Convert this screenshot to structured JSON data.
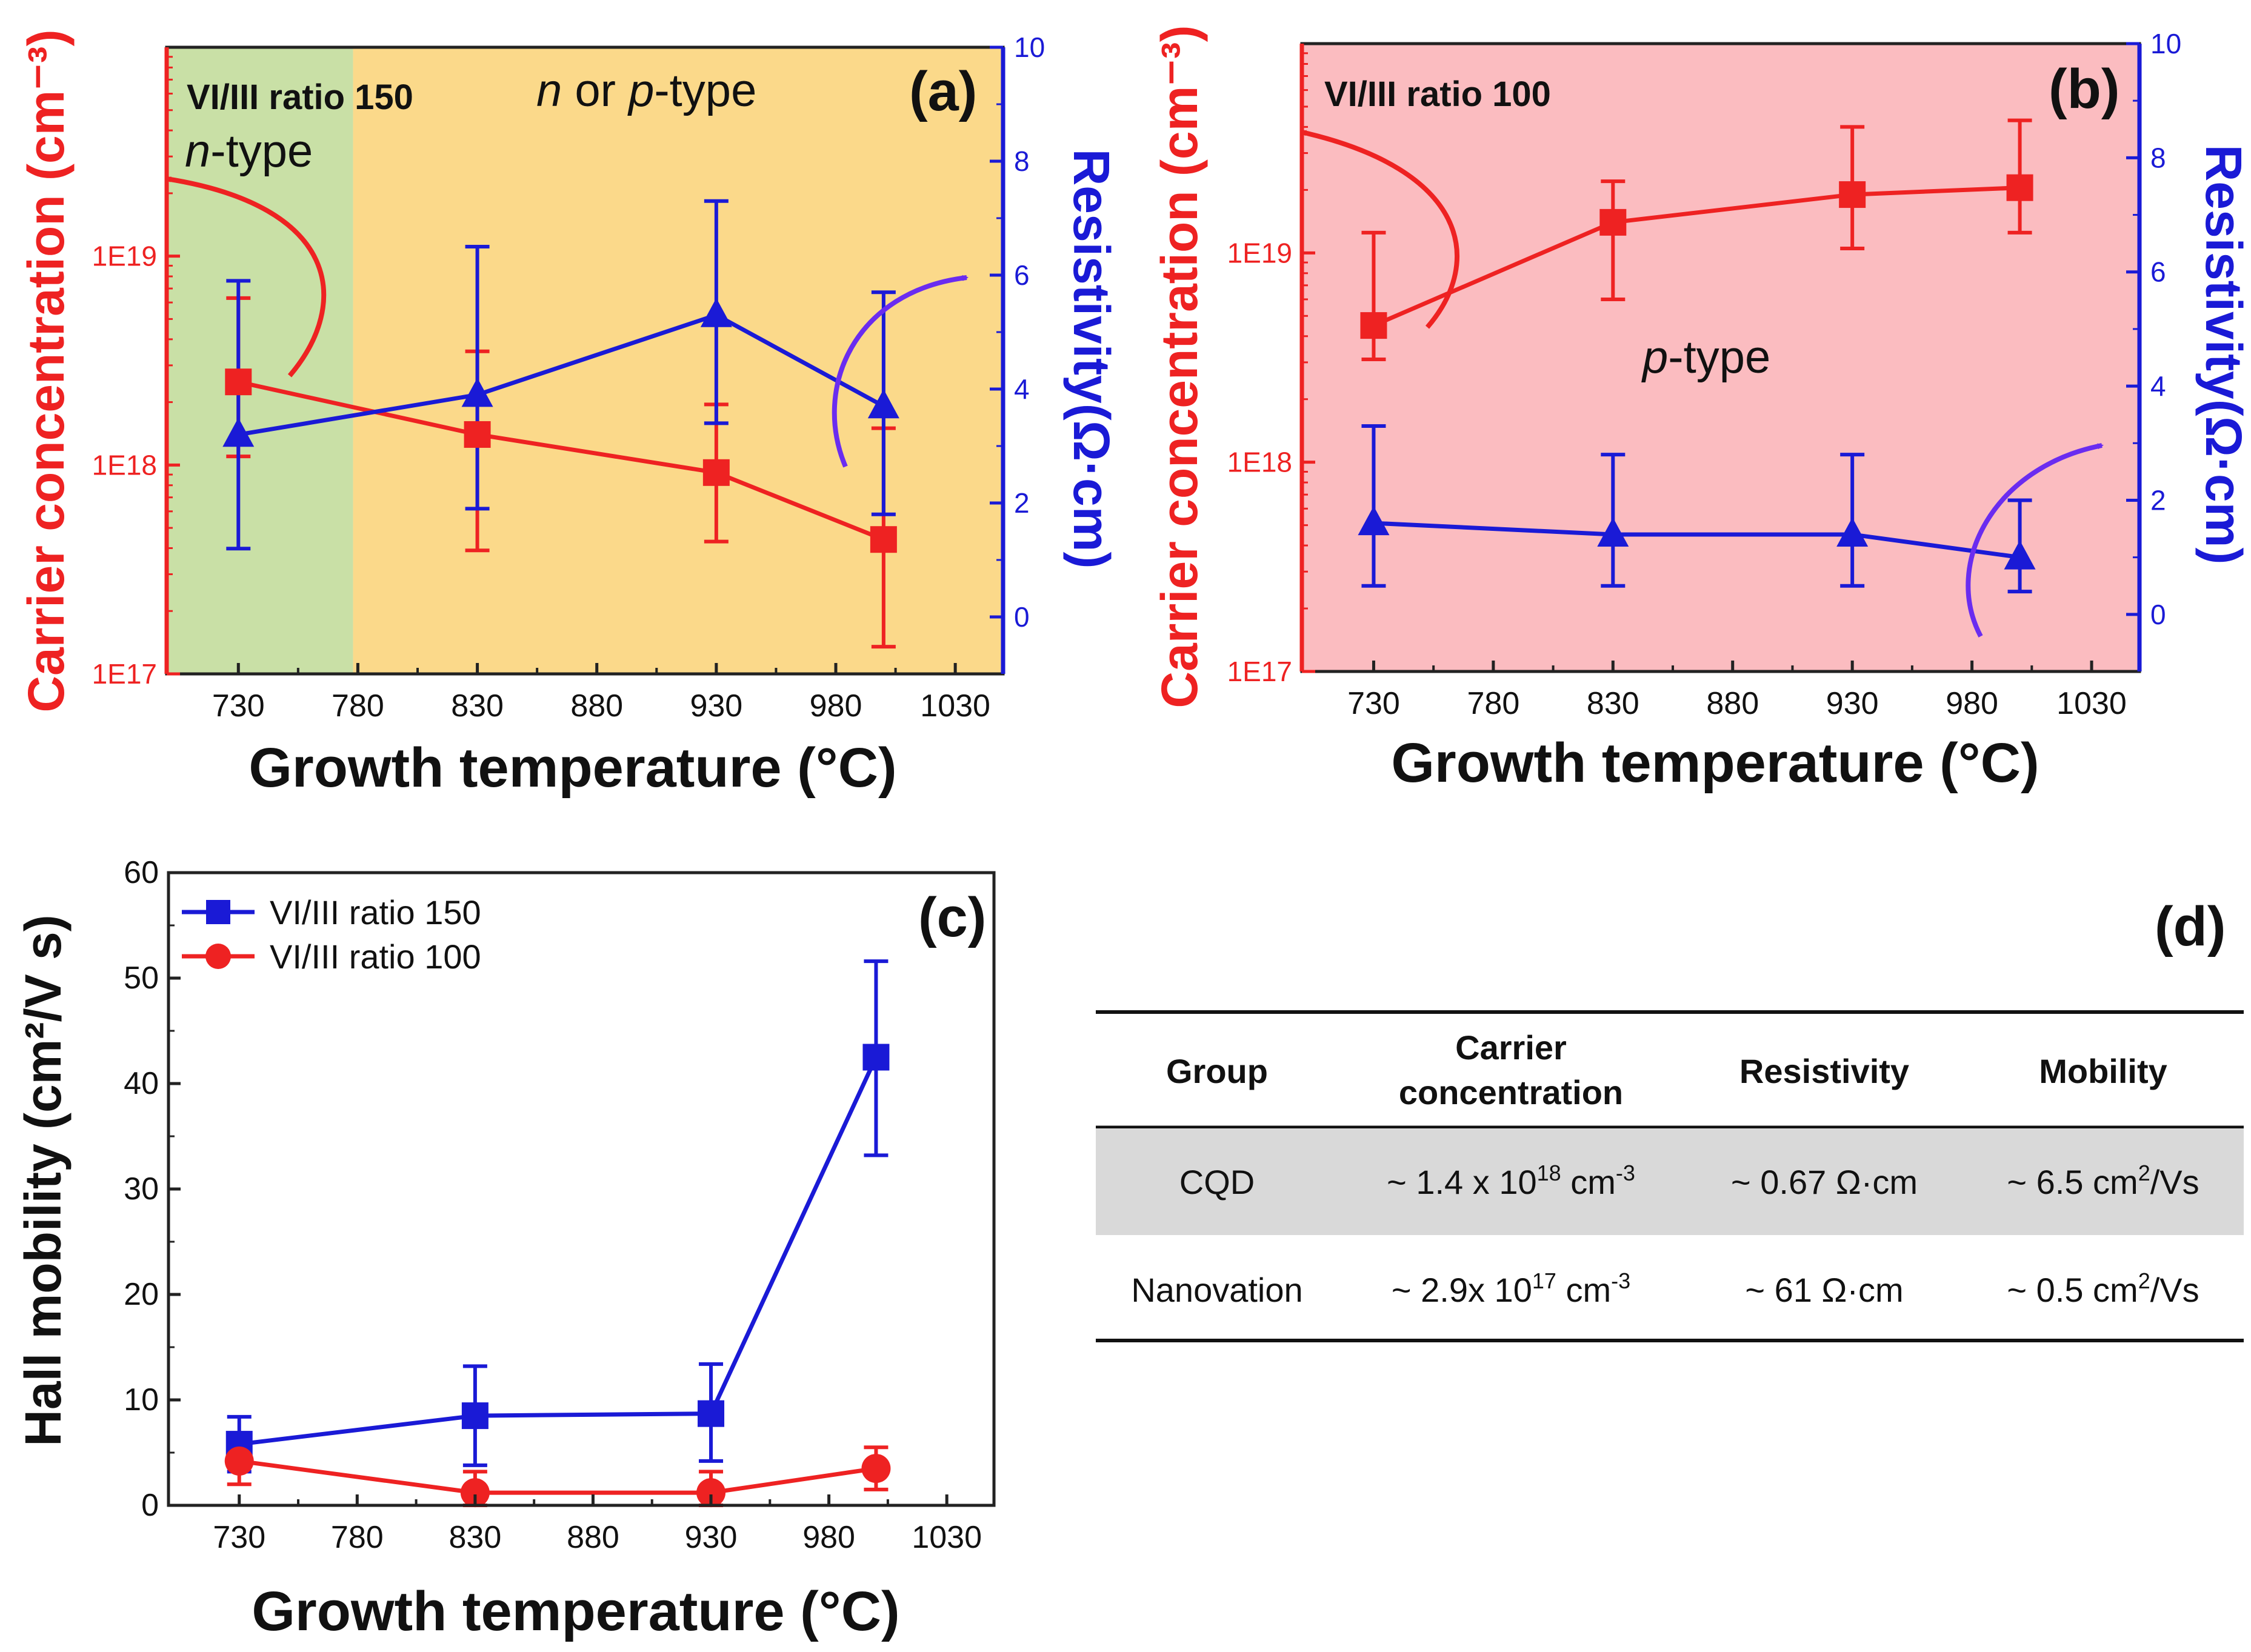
{
  "colors": {
    "red": "#ee2222",
    "blue": "#1a1ad6",
    "green_bg": "#c9e0a6",
    "orange_bg": "#fbd98a",
    "pink_bg": "#fbbcc0",
    "table_shade": "#d9d9d9",
    "purple_arrow": "#6a2cf0"
  },
  "chart_data": [
    {
      "id": "a",
      "type": "line",
      "panel_label": "(a)",
      "xlabel": "Growth temperature (°C)",
      "ylabel_left": "Carrier concentration (cm⁻³)",
      "ylabel_right": "Resistivity(Ω·cm)",
      "x_ticks": [
        730,
        780,
        830,
        880,
        930,
        980,
        1030
      ],
      "x_tick_labels": [
        "730",
        "780",
        "830",
        "880",
        "930",
        "980",
        "1030"
      ],
      "xlim": [
        700,
        1050
      ],
      "y_left_scale": "log",
      "y_left_lim": [
        1e+17,
        1e+20
      ],
      "y_left_ticks": [
        1e+17,
        1e+18,
        1e+19
      ],
      "y_left_tick_labels": [
        "1E17",
        "1E18",
        "1E19"
      ],
      "y_right_lim": [
        -1,
        10
      ],
      "y_right_ticks": [
        0,
        2,
        4,
        6,
        8,
        10
      ],
      "y_right_tick_labels": [
        "0",
        "2",
        "4",
        "6",
        "8",
        "10"
      ],
      "regions": [
        {
          "name": "n-type",
          "x_range": [
            700,
            778
          ],
          "color": "green"
        },
        {
          "name": "n or p-type",
          "x_range": [
            778,
            1050
          ],
          "color": "orange"
        }
      ],
      "annotations": {
        "ratio": "VI/III  ratio 150",
        "n_type_prefix": "n",
        "n_type_suffix": "-type",
        "mixed_n": "n",
        "mixed_or": " or ",
        "mixed_p": "p",
        "mixed_suffix": "-type"
      },
      "series": [
        {
          "name": "Carrier concentration",
          "axis": "left",
          "color": "red",
          "marker": "square",
          "x": [
            730,
            830,
            930,
            1000
          ],
          "y": [
            2.5e+18,
            1.4e+18,
            9.2e+17,
            4.4e+17
          ],
          "err_low": [
            1.1e+18,
            3.9e+17,
            4.3e+17,
            1.35e+17
          ],
          "err_high": [
            6.3e+18,
            3.5e+18,
            1.95e+18,
            1.5e+18
          ]
        },
        {
          "name": "Resistivity",
          "axis": "right",
          "color": "blue",
          "marker": "triangle",
          "x": [
            730,
            830,
            930,
            1000
          ],
          "y": [
            3.2,
            3.9,
            5.3,
            3.7
          ],
          "err_low": [
            1.2,
            1.9,
            3.4,
            1.8
          ],
          "err_high": [
            5.9,
            6.5,
            7.3,
            5.7
          ]
        }
      ]
    },
    {
      "id": "b",
      "type": "line",
      "panel_label": "(b)",
      "xlabel": "Growth temperature (°C)",
      "ylabel_left": "Carrier concentration (cm⁻³)",
      "ylabel_right": "Resistivity(Ω·cm)",
      "x_ticks": [
        730,
        780,
        830,
        880,
        930,
        980,
        1030
      ],
      "x_tick_labels": [
        "730",
        "780",
        "830",
        "880",
        "930",
        "980",
        "1030"
      ],
      "xlim": [
        700,
        1050
      ],
      "y_left_scale": "log",
      "y_left_lim": [
        1e+17,
        1e+20
      ],
      "y_left_ticks": [
        1e+17,
        1e+18,
        1e+19
      ],
      "y_left_tick_labels": [
        "1E17",
        "1E18",
        "1E19"
      ],
      "y_right_lim": [
        -1,
        10
      ],
      "y_right_ticks": [
        0,
        2,
        4,
        6,
        8,
        10
      ],
      "y_right_tick_labels": [
        "0",
        "2",
        "4",
        "6",
        "8",
        "10"
      ],
      "regions": [
        {
          "name": "p-type",
          "x_range": [
            700,
            1050
          ],
          "color": "pink"
        }
      ],
      "annotations": {
        "ratio": "VI/III  ratio 100",
        "p_prefix": "p",
        "p_suffix": "-type"
      },
      "series": [
        {
          "name": "Carrier concentration",
          "axis": "left",
          "color": "red",
          "marker": "square",
          "x": [
            730,
            830,
            930,
            1000
          ],
          "y": [
            4.5e+18,
            1.4e+19,
            1.9e+19,
            2.05e+19
          ],
          "err_low": [
            3.1e+18,
            6e+18,
            1.05e+19,
            1.25e+19
          ],
          "err_high": [
            1.25e+19,
            2.2e+19,
            4e+19,
            4.3e+19
          ]
        },
        {
          "name": "Resistivity",
          "axis": "right",
          "color": "blue",
          "marker": "triangle",
          "x": [
            730,
            830,
            930,
            1000
          ],
          "y": [
            1.6,
            1.4,
            1.4,
            1.0
          ],
          "err_low": [
            0.5,
            0.5,
            0.5,
            0.4
          ],
          "err_high": [
            3.3,
            2.8,
            2.8,
            2.0
          ]
        }
      ]
    },
    {
      "id": "c",
      "type": "line",
      "panel_label": "(c)",
      "xlabel": "Growth temperature (°C)",
      "ylabel": "Hall mobility (cm²/V s)",
      "x_ticks": [
        730,
        780,
        830,
        880,
        930,
        980,
        1030
      ],
      "x_tick_labels": [
        "730",
        "780",
        "830",
        "880",
        "930",
        "980",
        "1030"
      ],
      "xlim": [
        700,
        1050
      ],
      "ylim": [
        0,
        60
      ],
      "y_ticks": [
        0,
        10,
        20,
        30,
        40,
        50,
        60
      ],
      "y_tick_labels": [
        "0",
        "10",
        "20",
        "30",
        "40",
        "50",
        "60"
      ],
      "legend_position": "top-left",
      "series": [
        {
          "name": "VI/III ratio 150",
          "color": "blue",
          "marker": "square",
          "x": [
            730,
            830,
            930,
            1000
          ],
          "y": [
            5.8,
            8.5,
            8.7,
            42.5
          ],
          "err_low": [
            3.2,
            3.8,
            4.2,
            33.2
          ],
          "err_high": [
            8.4,
            13.2,
            13.4,
            51.6
          ]
        },
        {
          "name": "VI/III ratio 100",
          "color": "red",
          "marker": "circle",
          "x": [
            730,
            830,
            930,
            1000
          ],
          "y": [
            4.2,
            1.2,
            1.2,
            3.5
          ],
          "err_low": [
            2.0,
            0.0,
            0.0,
            1.5
          ],
          "err_high": [
            6.0,
            3.2,
            3.2,
            5.5
          ]
        }
      ]
    }
  ],
  "table": {
    "panel_label": "(d)",
    "headers": {
      "group": "Group",
      "carrier_line1": "Carrier",
      "carrier_line2": "concentration",
      "resistivity": "Resistivity",
      "mobility": "Mobility"
    },
    "rows": [
      {
        "group": "CQD",
        "carrier_main": "~ 1.4 x 10",
        "carrier_exp": "18",
        "carrier_unit": " cm",
        "carrier_unit_exp": "-3",
        "resistivity": "~ 0.67 Ω·cm",
        "mobility_main": "~ 6.5 cm",
        "mobility_exp": "2",
        "mobility_unit": "/Vs"
      },
      {
        "group": "Nanovation",
        "carrier_main": "~ 2.9x 10",
        "carrier_exp": "17",
        "carrier_unit": " cm",
        "carrier_unit_exp": "-3",
        "resistivity": "~ 61 Ω·cm",
        "mobility_main": "~ 0.5 cm",
        "mobility_exp": "2",
        "mobility_unit": "/Vs"
      }
    ]
  }
}
